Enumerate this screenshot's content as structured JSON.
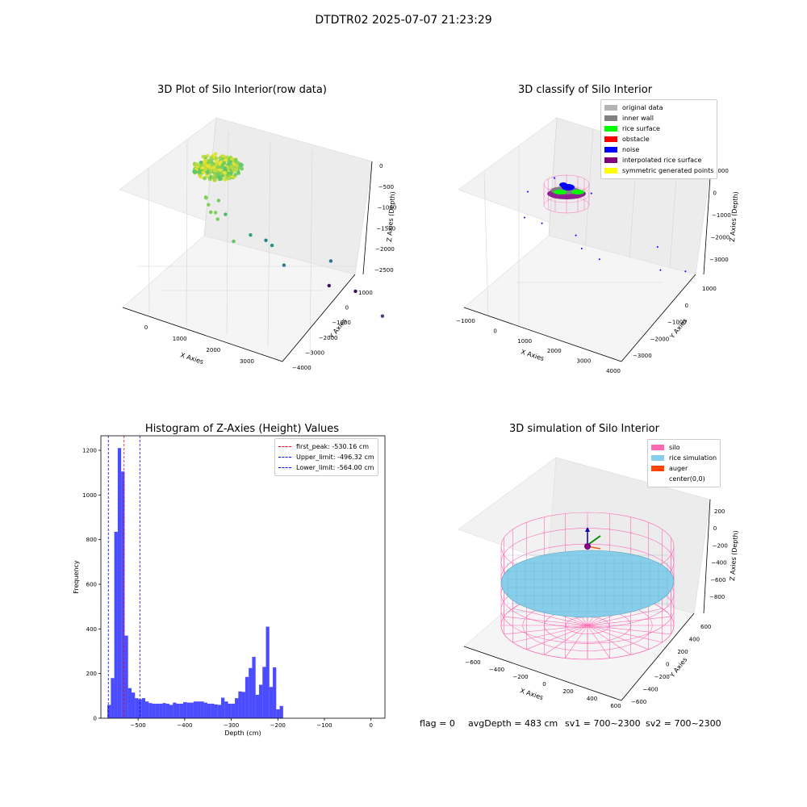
{
  "suptitle": "DTDTR02 2025-07-07 21:23:29",
  "footer": {
    "flag": "flag = 0",
    "avg_depth": "avgDepth = 483 cm",
    "sv1": "sv1 = 700~2300",
    "sv2": "sv2 = 700~2300"
  },
  "chart_data": [
    {
      "type": "scatter",
      "projection": "3d",
      "title": "3D Plot of Silo Interior(row data)",
      "xlabel": "X Axies",
      "ylabel": "Y Axies",
      "zlabel": "Z Axies (Depth)",
      "xticks": [
        "0",
        "1000",
        "2000",
        "3000"
      ],
      "yticks": [
        "−4000",
        "−3000",
        "−2000",
        "−1000",
        "0",
        "1000"
      ],
      "zticks": [
        "−2500",
        "−2000",
        "−1500",
        "−1000",
        "−500",
        "0"
      ],
      "xlim": [
        -600,
        3600
      ],
      "ylim": [
        -4000,
        1500
      ],
      "zlim": [
        -2800,
        100
      ],
      "colormap": "viridis",
      "points": [
        {
          "x": 0,
          "y": -100,
          "z": -500
        },
        {
          "x": 100,
          "y": 0,
          "z": -450
        },
        {
          "x": 250,
          "y": 100,
          "z": -480
        },
        {
          "x": 400,
          "y": 200,
          "z": -520
        },
        {
          "x": 550,
          "y": 250,
          "z": -470
        },
        {
          "x": 200,
          "y": -200,
          "z": -540
        },
        {
          "x": 650,
          "y": 300,
          "z": -530
        },
        {
          "x": 1300,
          "y": 600,
          "z": -600
        },
        {
          "x": 100,
          "y": -500,
          "z": -900
        },
        {
          "x": 500,
          "y": -700,
          "z": -1200
        },
        {
          "x": 900,
          "y": -800,
          "z": -1300
        },
        {
          "x": 1100,
          "y": -900,
          "z": -1600
        },
        {
          "x": 400,
          "y": -1200,
          "z": -1500
        },
        {
          "x": 1500,
          "y": -1600,
          "z": -1700
        },
        {
          "x": 2800,
          "y": -1500,
          "z": -2200
        },
        {
          "x": 600,
          "y": -2600,
          "z": -2700
        },
        {
          "x": 1100,
          "y": -2700,
          "z": -2700
        },
        {
          "x": 3000,
          "y": -3600,
          "z": -2700
        }
      ]
    },
    {
      "type": "scatter",
      "projection": "3d",
      "title": "3D classify of Silo Interior",
      "xlabel": "X Axies",
      "ylabel": "Y Axies",
      "zlabel": "Z Axies (Depth)",
      "xticks": [
        "−1000",
        "0",
        "1000",
        "2000",
        "3000",
        "4000"
      ],
      "yticks": [
        "−3000",
        "−2000",
        "−1000",
        "0",
        "1000"
      ],
      "zticks": [
        "−3000",
        "−2000",
        "−1000",
        "0",
        "1000"
      ],
      "xlim": [
        -1000,
        4000
      ],
      "ylim": [
        -3800,
        1500
      ],
      "zlim": [
        -3500,
        1100
      ],
      "legend_position": "top-right",
      "legend": [
        {
          "label": "original data",
          "color": "#b3b3b3"
        },
        {
          "label": "inner wall",
          "color": "#808080"
        },
        {
          "label": "rice surface",
          "color": "#00ff00"
        },
        {
          "label": "obstacle",
          "color": "#ff0000"
        },
        {
          "label": "noise",
          "color": "#0000ff"
        },
        {
          "label": "interpolated rice surface",
          "color": "#800080"
        },
        {
          "label": "symmetric generated points",
          "color": "#ffff00"
        }
      ],
      "noise_points": [
        {
          "x": 1200,
          "y": 900,
          "z": -600
        },
        {
          "x": 2000,
          "y": 800,
          "z": -200
        },
        {
          "x": 3000,
          "y": 500,
          "z": -400
        },
        {
          "x": 200,
          "y": -100,
          "z": -1600
        },
        {
          "x": 800,
          "y": -100,
          "z": -1600
        },
        {
          "x": 1600,
          "y": -500,
          "z": -1800
        },
        {
          "x": 3200,
          "y": -1800,
          "z": -2100
        },
        {
          "x": 3600,
          "y": -1500,
          "z": -2400
        },
        {
          "x": -300,
          "y": -2800,
          "z": -3100
        },
        {
          "x": 500,
          "y": -2600,
          "z": -3100
        },
        {
          "x": 2800,
          "y": -3300,
          "z": -3100
        }
      ]
    },
    {
      "type": "bar",
      "title": "Histogram of Z-Axies (Height) Values",
      "xlabel": "Depth (cm)",
      "ylabel": "Frequency",
      "xlim": [
        -580,
        30
      ],
      "ylim": [
        0,
        1265
      ],
      "xticks": [
        -500,
        -400,
        -300,
        -200,
        -100,
        0
      ],
      "xtick_labels": [
        "−500",
        "−400",
        "−300",
        "−200",
        "−100",
        "0"
      ],
      "yticks": [
        0,
        200,
        400,
        600,
        800,
        1000,
        1200
      ],
      "bar_color": "#0000ff",
      "bin_start": -566,
      "bin_width": 7.4,
      "values": [
        60,
        180,
        835,
        1210,
        1105,
        370,
        135,
        115,
        90,
        85,
        90,
        75,
        68,
        65,
        65,
        65,
        68,
        65,
        60,
        70,
        65,
        65,
        72,
        70,
        70,
        75,
        75,
        75,
        70,
        65,
        65,
        62,
        60,
        92,
        75,
        65,
        65,
        90,
        120,
        118,
        185,
        225,
        275,
        105,
        150,
        230,
        410,
        140,
        228,
        40,
        55
      ],
      "legend_position": "top-right",
      "lines": [
        {
          "label": "first_peak: -530.16 cm",
          "x": -530.16,
          "color": "#ff0000"
        },
        {
          "label": "Upper_limit: -496.32 cm",
          "x": -496.32,
          "color": "#0000ff"
        },
        {
          "label": "Lower_limit: -564.00 cm",
          "x": -564.0,
          "color": "#0000ff"
        }
      ]
    },
    {
      "type": "surface",
      "projection": "3d",
      "title": "3D simulation of Silo Interior",
      "xlabel": "X Axies",
      "ylabel": "Y Axies",
      "zlabel": "Z Axies (Depth)",
      "xticks": [
        "−600",
        "−400",
        "−200",
        "0",
        "200",
        "400",
        "600"
      ],
      "yticks": [
        "−600",
        "−400",
        "−200",
        "0",
        "200",
        "400",
        "600"
      ],
      "zticks": [
        "−800",
        "−600",
        "−400",
        "−200",
        "0",
        "200"
      ],
      "legend_position": "top-right",
      "legend": [
        {
          "label": "silo",
          "color": "#ff69b4"
        },
        {
          "label": "rice simulation",
          "color": "#87ceeb"
        },
        {
          "label": "auger",
          "color": "#ff4500"
        },
        {
          "label": "center(0,0)",
          "color": ""
        }
      ]
    }
  ]
}
